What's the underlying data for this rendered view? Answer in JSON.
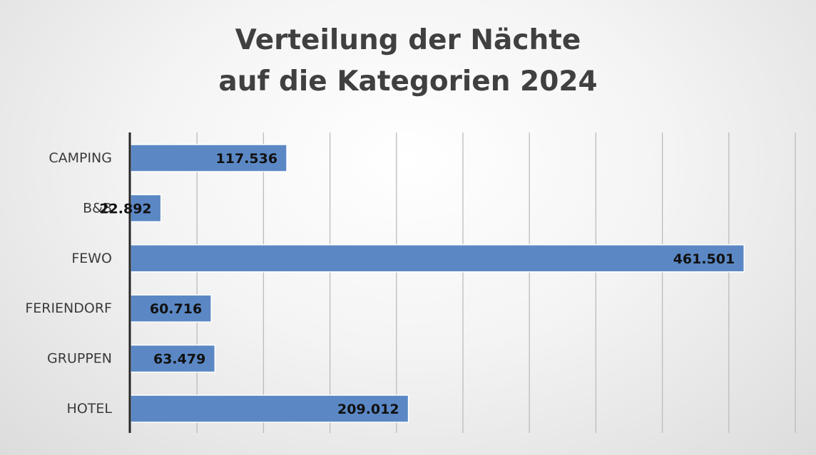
{
  "chart_data": {
    "type": "bar",
    "orientation": "horizontal",
    "title": "Verteilung der Nächte auf die Kategorien 2024",
    "title_lines": [
      "Verteilung der Nächte",
      "auf die Kategorien 2024"
    ],
    "categories": [
      "CAMPING",
      "B&B",
      "FEWO",
      "FERIENDORF",
      "GRUPPEN",
      "HOTEL"
    ],
    "values": [
      117536,
      22892,
      461501,
      60716,
      63479,
      209012
    ],
    "value_labels": [
      "117.536",
      "22.892",
      "461.501",
      "60.716",
      "63.479",
      "209.012"
    ],
    "xlim": [
      0,
      500000
    ],
    "x_grid_step": 50000,
    "grid": true,
    "xlabel": "",
    "ylabel": "",
    "legend": "none",
    "bar_color": "#5b88c5",
    "bar_edge_color": "#ffffff",
    "grid_color": "#bcbcbc",
    "axis_color": "#262626"
  }
}
